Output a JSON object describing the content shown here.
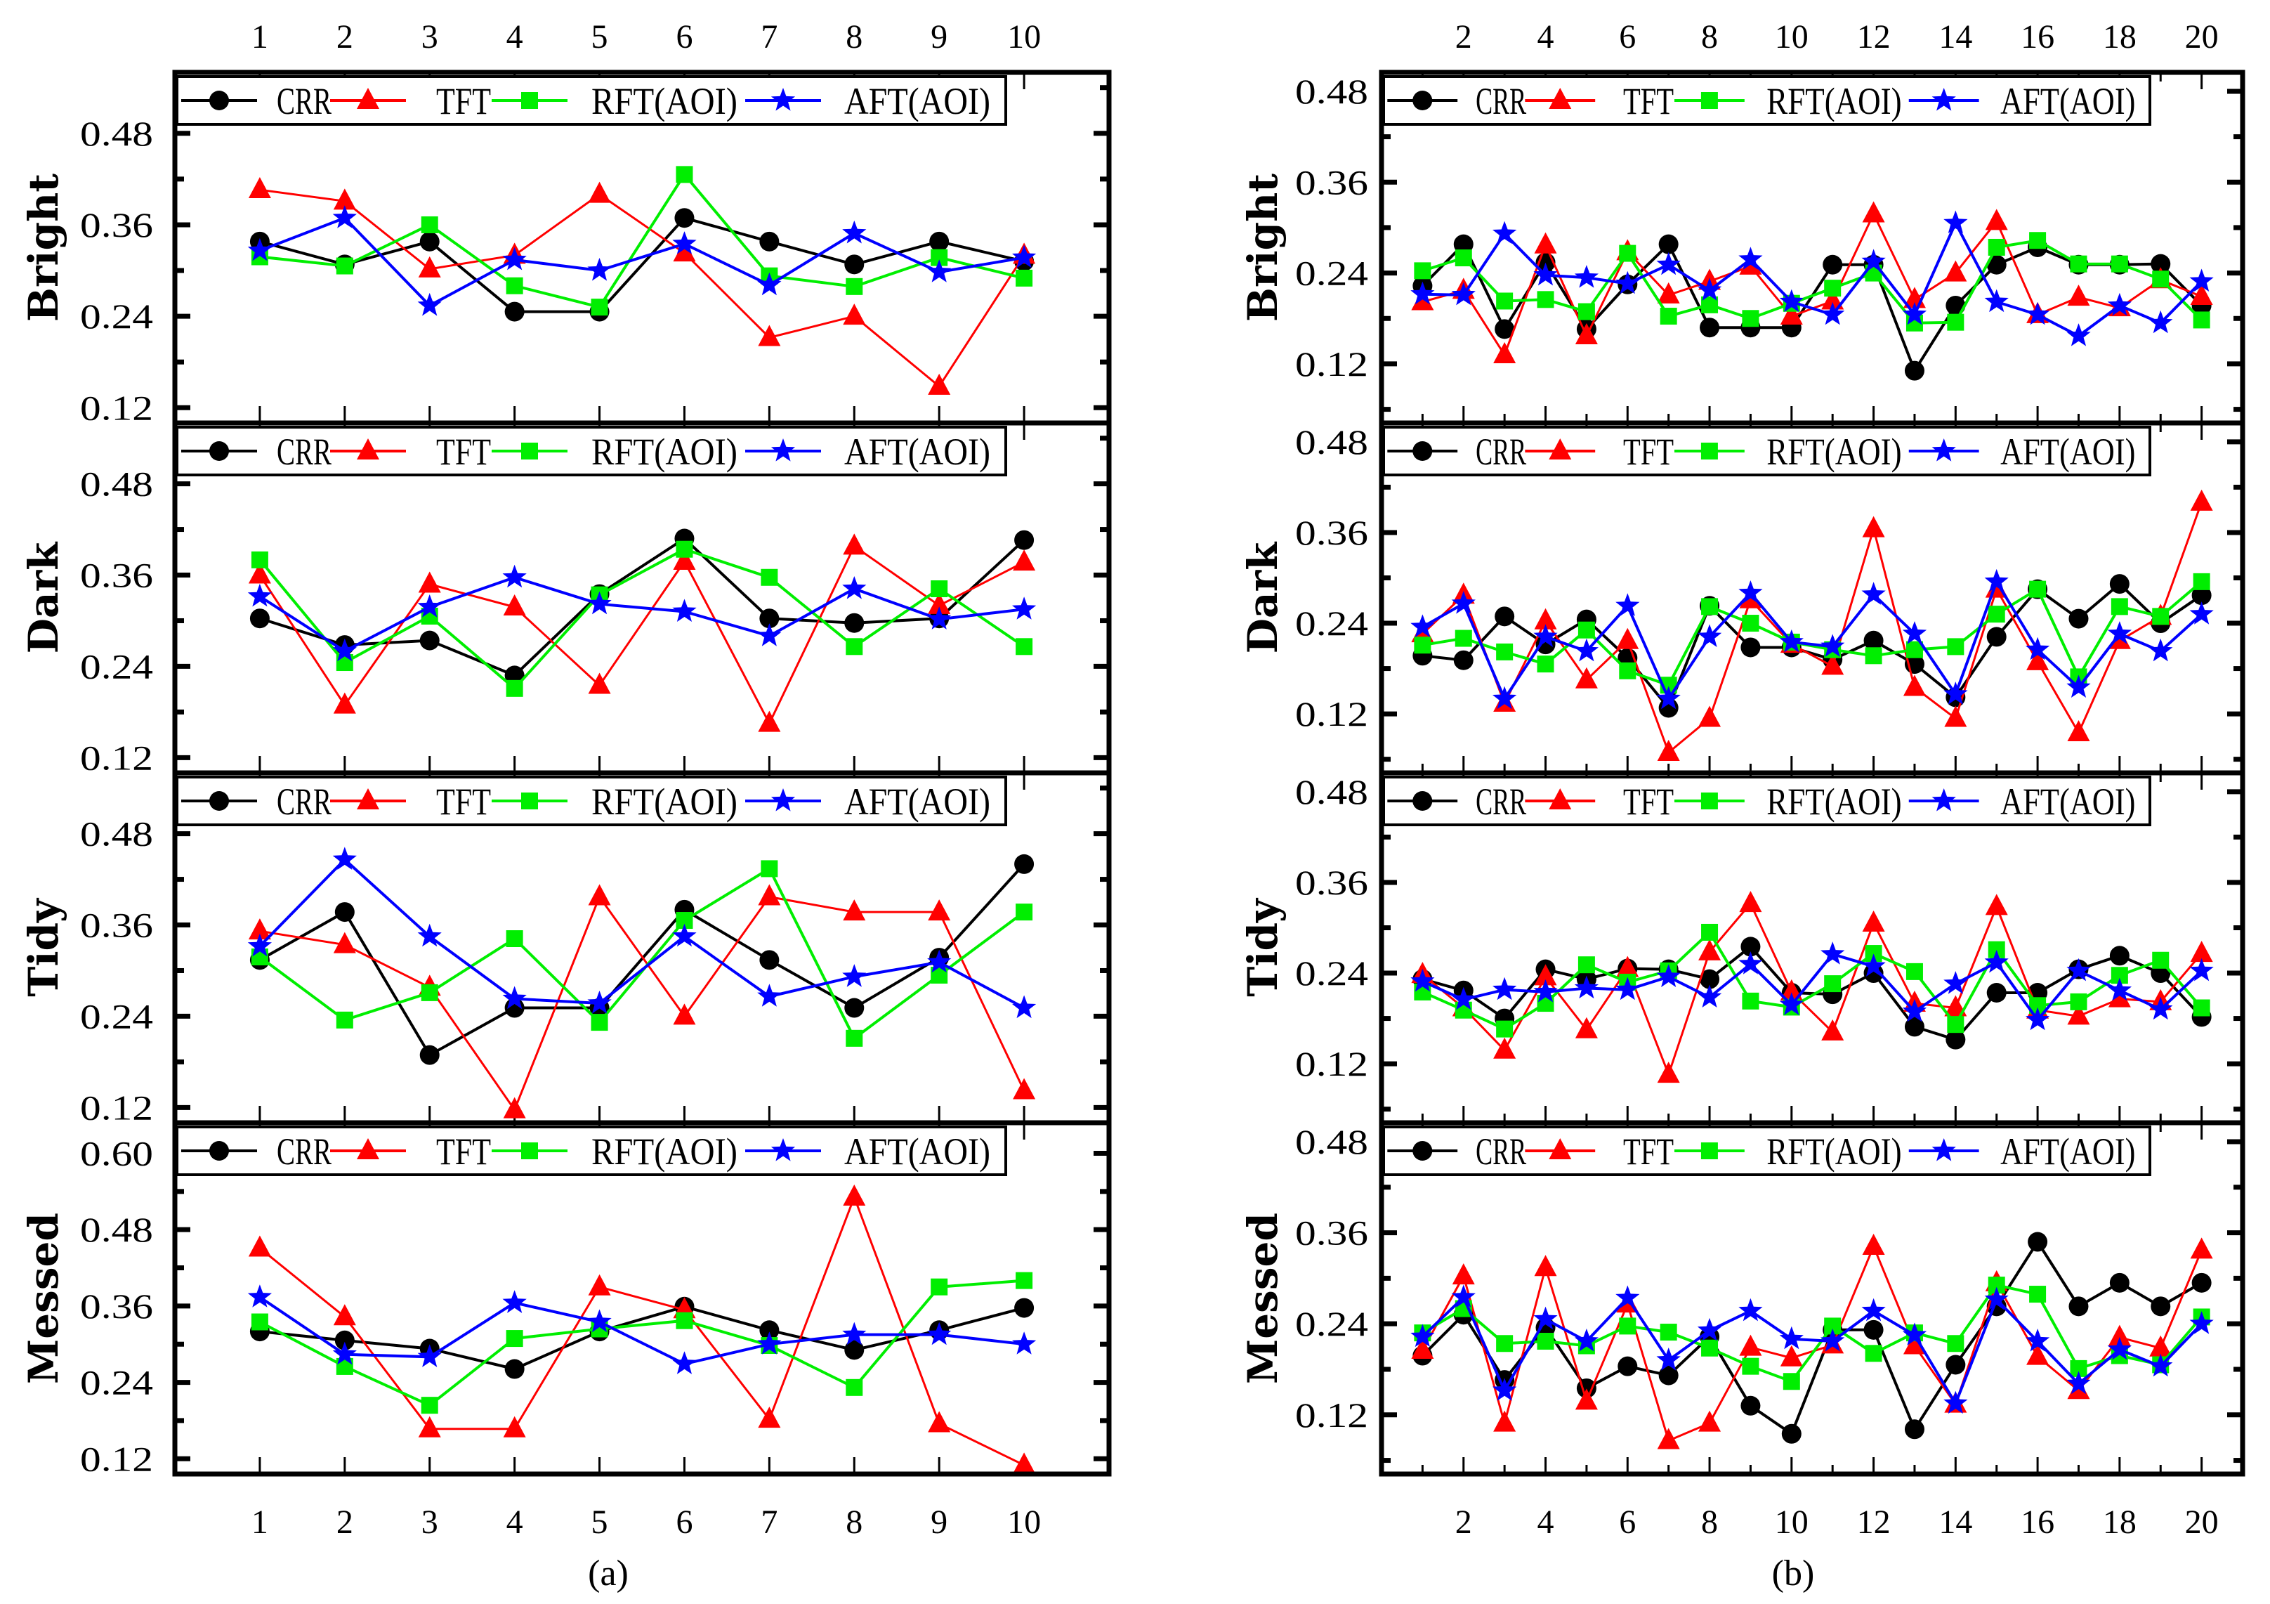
{
  "figure": {
    "panel_labels": [
      "(a)",
      "(b)"
    ]
  },
  "chart_data": [
    {
      "type": "line",
      "panel": "(a)",
      "ylabel": "Bright",
      "x": [
        1,
        2,
        3,
        4,
        5,
        6,
        7,
        8,
        9,
        10
      ],
      "xlim": [
        0,
        11
      ],
      "ylim": [
        0.1,
        0.56
      ],
      "yticks": [
        "0.12",
        "0.24",
        "0.36",
        "0.48"
      ],
      "xtick_labels": [
        "1",
        "2",
        "3",
        "4",
        "5",
        "6",
        "7",
        "8",
        "9",
        "10"
      ],
      "series": [
        {
          "name": "CRR",
          "color": "#000000",
          "marker": "circle",
          "values": [
            0.338,
            0.308,
            0.338,
            0.246,
            0.246,
            0.369,
            0.338,
            0.308,
            0.338,
            0.312
          ]
        },
        {
          "name": "TFT",
          "color": "#ff0000",
          "marker": "triangle",
          "values": [
            0.406,
            0.391,
            0.302,
            0.32,
            0.4,
            0.323,
            0.212,
            0.24,
            0.148,
            0.32
          ]
        },
        {
          "name": "RFT(AOI)",
          "color": "#00ee00",
          "marker": "square",
          "values": [
            0.318,
            0.306,
            0.36,
            0.28,
            0.252,
            0.426,
            0.293,
            0.279,
            0.317,
            0.29
          ]
        },
        {
          "name": "AFT(AOI)",
          "color": "#0000ff",
          "marker": "star",
          "values": [
            0.326,
            0.369,
            0.254,
            0.314,
            0.3,
            0.335,
            0.281,
            0.349,
            0.298,
            0.317
          ]
        }
      ]
    },
    {
      "type": "line",
      "panel": "(a)",
      "ylabel": "Dark",
      "x": [
        1,
        2,
        3,
        4,
        5,
        6,
        7,
        8,
        9,
        10
      ],
      "xlim": [
        0,
        11
      ],
      "ylim": [
        0.1,
        0.56
      ],
      "yticks": [
        "0.12",
        "0.24",
        "0.36",
        "0.48"
      ],
      "xtick_labels": [
        "1",
        "2",
        "3",
        "4",
        "5",
        "6",
        "7",
        "8",
        "9",
        "10"
      ],
      "series": [
        {
          "name": "CRR",
          "color": "#000000",
          "marker": "circle",
          "values": [
            0.303,
            0.268,
            0.274,
            0.228,
            0.335,
            0.408,
            0.303,
            0.297,
            0.303,
            0.406
          ]
        },
        {
          "name": "TFT",
          "color": "#ff0000",
          "marker": "triangle",
          "values": [
            0.36,
            0.189,
            0.348,
            0.318,
            0.215,
            0.378,
            0.165,
            0.398,
            0.32,
            0.377
          ]
        },
        {
          "name": "RFT(AOI)",
          "color": "#00ee00",
          "marker": "square",
          "values": [
            0.38,
            0.245,
            0.306,
            0.211,
            0.334,
            0.394,
            0.357,
            0.266,
            0.342,
            0.266
          ]
        },
        {
          "name": "AFT(AOI)",
          "color": "#0000ff",
          "marker": "star",
          "values": [
            0.332,
            0.26,
            0.318,
            0.357,
            0.322,
            0.312,
            0.28,
            0.342,
            0.302,
            0.315
          ]
        }
      ]
    },
    {
      "type": "line",
      "panel": "(a)",
      "ylabel": "Tidy",
      "x": [
        1,
        2,
        3,
        4,
        5,
        6,
        7,
        8,
        9,
        10
      ],
      "xlim": [
        0,
        11
      ],
      "ylim": [
        0.1,
        0.56
      ],
      "yticks": [
        "0.12",
        "0.24",
        "0.36",
        "0.48"
      ],
      "xtick_labels": [
        "1",
        "2",
        "3",
        "4",
        "5",
        "6",
        "7",
        "8",
        "9",
        "10"
      ],
      "series": [
        {
          "name": "CRR",
          "color": "#000000",
          "marker": "circle",
          "values": [
            0.314,
            0.377,
            0.189,
            0.251,
            0.251,
            0.38,
            0.314,
            0.251,
            0.317,
            0.44
          ]
        },
        {
          "name": "TFT",
          "color": "#ff0000",
          "marker": "triangle",
          "values": [
            0.352,
            0.334,
            0.278,
            0.117,
            0.397,
            0.24,
            0.397,
            0.377,
            0.377,
            0.142
          ]
        },
        {
          "name": "RFT(AOI)",
          "color": "#00ee00",
          "marker": "square",
          "values": [
            0.318,
            0.235,
            0.271,
            0.342,
            0.232,
            0.366,
            0.434,
            0.211,
            0.294,
            0.377
          ]
        },
        {
          "name": "AFT(AOI)",
          "color": "#0000ff",
          "marker": "star",
          "values": [
            0.332,
            0.446,
            0.345,
            0.263,
            0.257,
            0.345,
            0.266,
            0.292,
            0.311,
            0.251
          ]
        }
      ]
    },
    {
      "type": "line",
      "panel": "(a)",
      "ylabel": "Messed",
      "x": [
        1,
        2,
        3,
        4,
        5,
        6,
        7,
        8,
        9,
        10
      ],
      "xlim": [
        0,
        11
      ],
      "ylim": [
        0.096,
        0.648
      ],
      "yticks": [
        "0.12",
        "0.24",
        "0.36",
        "0.48",
        "0.60"
      ],
      "xtick_labels": [
        "1",
        "2",
        "3",
        "4",
        "5",
        "6",
        "7",
        "8",
        "9",
        "10"
      ],
      "series": [
        {
          "name": "CRR",
          "color": "#000000",
          "marker": "circle",
          "values": [
            0.32,
            0.306,
            0.293,
            0.261,
            0.32,
            0.359,
            0.322,
            0.291,
            0.322,
            0.357
          ]
        },
        {
          "name": "TFT",
          "color": "#ff0000",
          "marker": "triangle",
          "values": [
            0.451,
            0.343,
            0.167,
            0.167,
            0.39,
            0.354,
            0.182,
            0.531,
            0.175,
            0.11
          ]
        },
        {
          "name": "RFT(AOI)",
          "color": "#00ee00",
          "marker": "square",
          "values": [
            0.335,
            0.265,
            0.204,
            0.309,
            0.324,
            0.337,
            0.298,
            0.232,
            0.39,
            0.4
          ]
        },
        {
          "name": "AFT(AOI)",
          "color": "#0000ff",
          "marker": "star",
          "values": [
            0.374,
            0.284,
            0.28,
            0.365,
            0.335,
            0.269,
            0.3,
            0.315,
            0.315,
            0.3
          ]
        }
      ]
    },
    {
      "type": "line",
      "panel": "(b)",
      "ylabel": "Bright",
      "x": [
        1,
        2,
        3,
        4,
        5,
        6,
        7,
        8,
        9,
        10,
        11,
        12,
        13,
        14,
        15,
        16,
        17,
        18,
        19,
        20
      ],
      "xlim": [
        0,
        21
      ],
      "ylim": [
        0.042,
        0.505
      ],
      "yticks": [
        "0.12",
        "0.24",
        "0.36",
        "0.48"
      ],
      "xtick_labels": [
        "2",
        "4",
        "6",
        "8",
        "10",
        "12",
        "14",
        "16",
        "18",
        "20"
      ],
      "series": [
        {
          "name": "CRR",
          "color": "#000000",
          "marker": "circle",
          "values": [
            0.223,
            0.278,
            0.166,
            0.254,
            0.166,
            0.225,
            0.278,
            0.168,
            0.168,
            0.168,
            0.251,
            0.251,
            0.111,
            0.197,
            0.251,
            0.274,
            0.251,
            0.251,
            0.252,
            0.197
          ]
        },
        {
          "name": "TFT",
          "color": "#ff0000",
          "marker": "triangle",
          "values": [
            0.202,
            0.217,
            0.132,
            0.277,
            0.157,
            0.268,
            0.211,
            0.229,
            0.249,
            0.183,
            0.203,
            0.318,
            0.205,
            0.24,
            0.308,
            0.185,
            0.208,
            0.194,
            0.231,
            0.209
          ]
        },
        {
          "name": "RFT(AOI)",
          "color": "#00ee00",
          "marker": "square",
          "values": [
            0.243,
            0.26,
            0.203,
            0.205,
            0.189,
            0.266,
            0.183,
            0.198,
            0.18,
            0.2,
            0.22,
            0.24,
            0.174,
            0.175,
            0.274,
            0.283,
            0.252,
            0.252,
            0.232,
            0.178
          ]
        },
        {
          "name": "AFT(AOI)",
          "color": "#0000ff",
          "marker": "star",
          "values": [
            0.212,
            0.211,
            0.292,
            0.237,
            0.234,
            0.226,
            0.251,
            0.217,
            0.258,
            0.202,
            0.185,
            0.255,
            0.185,
            0.306,
            0.202,
            0.185,
            0.157,
            0.197,
            0.174,
            0.229
          ]
        }
      ]
    },
    {
      "type": "line",
      "panel": "(b)",
      "ylabel": "Dark",
      "x": [
        1,
        2,
        3,
        4,
        5,
        6,
        7,
        8,
        9,
        10,
        11,
        12,
        13,
        14,
        15,
        16,
        17,
        18,
        19,
        20
      ],
      "xlim": [
        0,
        21
      ],
      "ylim": [
        0.042,
        0.505
      ],
      "yticks": [
        "0.12",
        "0.24",
        "0.36",
        "0.48"
      ],
      "xtick_labels": [
        "2",
        "4",
        "6",
        "8",
        "10",
        "12",
        "14",
        "16",
        "18",
        "20"
      ],
      "series": [
        {
          "name": "CRR",
          "color": "#000000",
          "marker": "circle",
          "values": [
            0.197,
            0.191,
            0.249,
            0.212,
            0.245,
            0.194,
            0.128,
            0.263,
            0.208,
            0.208,
            0.192,
            0.217,
            0.186,
            0.142,
            0.222,
            0.285,
            0.246,
            0.292,
            0.24,
            0.277
          ]
        },
        {
          "name": "TFT",
          "color": "#ff0000",
          "marker": "triangle",
          "values": [
            0.226,
            0.277,
            0.134,
            0.243,
            0.165,
            0.217,
            0.069,
            0.114,
            0.271,
            0.212,
            0.183,
            0.365,
            0.155,
            0.114,
            0.285,
            0.189,
            0.095,
            0.217,
            0.249,
            0.4
          ]
        },
        {
          "name": "RFT(AOI)",
          "color": "#00ee00",
          "marker": "square",
          "values": [
            0.211,
            0.22,
            0.202,
            0.186,
            0.231,
            0.177,
            0.158,
            0.262,
            0.24,
            0.215,
            0.205,
            0.197,
            0.205,
            0.209,
            0.252,
            0.285,
            0.169,
            0.262,
            0.249,
            0.295
          ]
        },
        {
          "name": "AFT(AOI)",
          "color": "#0000ff",
          "marker": "star",
          "values": [
            0.235,
            0.266,
            0.14,
            0.222,
            0.203,
            0.263,
            0.14,
            0.222,
            0.28,
            0.215,
            0.209,
            0.278,
            0.226,
            0.146,
            0.295,
            0.205,
            0.155,
            0.226,
            0.203,
            0.252
          ]
        }
      ]
    },
    {
      "type": "line",
      "panel": "(b)",
      "ylabel": "Tidy",
      "x": [
        1,
        2,
        3,
        4,
        5,
        6,
        7,
        8,
        9,
        10,
        11,
        12,
        13,
        14,
        15,
        16,
        17,
        18,
        19,
        20
      ],
      "xlim": [
        0,
        21
      ],
      "ylim": [
        0.042,
        0.505
      ],
      "yticks": [
        "0.12",
        "0.24",
        "0.36",
        "0.48"
      ],
      "xtick_labels": [
        "2",
        "4",
        "6",
        "8",
        "10",
        "12",
        "14",
        "16",
        "18",
        "20"
      ],
      "series": [
        {
          "name": "CRR",
          "color": "#000000",
          "marker": "circle",
          "values": [
            0.232,
            0.217,
            0.18,
            0.245,
            0.232,
            0.246,
            0.245,
            0.232,
            0.275,
            0.214,
            0.212,
            0.24,
            0.169,
            0.152,
            0.214,
            0.214,
            0.245,
            0.263,
            0.24,
            0.182
          ]
        },
        {
          "name": "TFT",
          "color": "#ff0000",
          "marker": "triangle",
          "values": [
            0.238,
            0.194,
            0.138,
            0.235,
            0.165,
            0.246,
            0.106,
            0.268,
            0.332,
            0.215,
            0.162,
            0.306,
            0.2,
            0.194,
            0.328,
            0.191,
            0.183,
            0.206,
            0.202,
            0.266
          ]
        },
        {
          "name": "RFT(AOI)",
          "color": "#00ee00",
          "marker": "square",
          "values": [
            0.215,
            0.191,
            0.166,
            0.2,
            0.251,
            0.228,
            0.243,
            0.294,
            0.203,
            0.195,
            0.226,
            0.266,
            0.242,
            0.172,
            0.271,
            0.197,
            0.202,
            0.237,
            0.257,
            0.194
          ]
        },
        {
          "name": "AFT(AOI)",
          "color": "#0000ff",
          "marker": "star",
          "values": [
            0.229,
            0.205,
            0.218,
            0.215,
            0.22,
            0.218,
            0.235,
            0.208,
            0.252,
            0.198,
            0.265,
            0.249,
            0.189,
            0.226,
            0.254,
            0.178,
            0.243,
            0.217,
            0.192,
            0.243
          ]
        }
      ]
    },
    {
      "type": "line",
      "panel": "(b)",
      "ylabel": "Messed",
      "x": [
        1,
        2,
        3,
        4,
        5,
        6,
        7,
        8,
        9,
        10,
        11,
        12,
        13,
        14,
        15,
        16,
        17,
        18,
        19,
        20
      ],
      "xlim": [
        0,
        21
      ],
      "ylim": [
        0.042,
        0.505
      ],
      "yticks": [
        "0.12",
        "0.24",
        "0.36",
        "0.48"
      ],
      "xtick_labels": [
        "2",
        "4",
        "6",
        "8",
        "10",
        "12",
        "14",
        "16",
        "18",
        "20"
      ],
      "series": [
        {
          "name": "CRR",
          "color": "#000000",
          "marker": "circle",
          "values": [
            0.198,
            0.252,
            0.166,
            0.235,
            0.155,
            0.184,
            0.172,
            0.223,
            0.132,
            0.095,
            0.232,
            0.232,
            0.101,
            0.186,
            0.263,
            0.348,
            0.263,
            0.294,
            0.263,
            0.294
          ]
        },
        {
          "name": "TFT",
          "color": "#ff0000",
          "marker": "triangle",
          "values": [
            0.205,
            0.303,
            0.109,
            0.314,
            0.138,
            0.266,
            0.086,
            0.109,
            0.209,
            0.195,
            0.212,
            0.342,
            0.211,
            0.134,
            0.294,
            0.197,
            0.152,
            0.222,
            0.208,
            0.337
          ]
        },
        {
          "name": "RFT(AOI)",
          "color": "#00ee00",
          "marker": "square",
          "values": [
            0.228,
            0.26,
            0.214,
            0.217,
            0.211,
            0.237,
            0.229,
            0.208,
            0.184,
            0.164,
            0.237,
            0.201,
            0.228,
            0.214,
            0.291,
            0.279,
            0.181,
            0.198,
            0.186,
            0.249
          ]
        },
        {
          "name": "AFT(AOI)",
          "color": "#0000ff",
          "marker": "star",
          "values": [
            0.223,
            0.275,
            0.152,
            0.246,
            0.217,
            0.274,
            0.192,
            0.231,
            0.257,
            0.22,
            0.217,
            0.257,
            0.225,
            0.135,
            0.272,
            0.217,
            0.161,
            0.206,
            0.184,
            0.24
          ]
        }
      ]
    }
  ]
}
